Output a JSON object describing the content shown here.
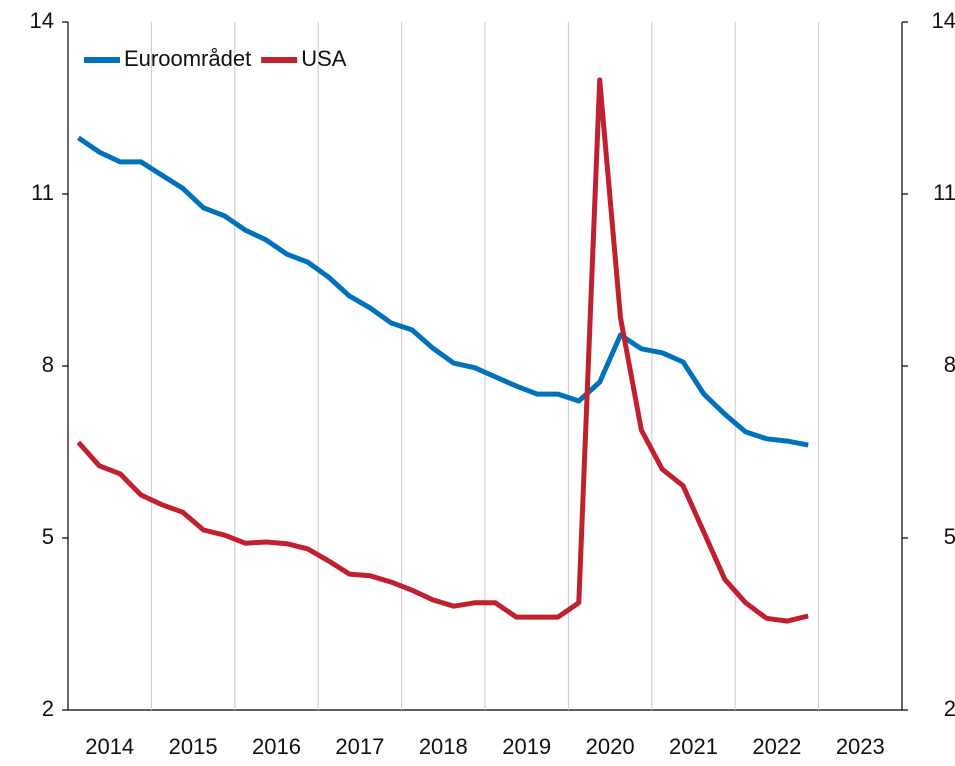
{
  "chart_data": {
    "type": "line",
    "xlabels": [
      "2014",
      "2015",
      "2016",
      "2017",
      "2018",
      "2019",
      "2020",
      "2021",
      "2022",
      "2023"
    ],
    "periods_per_label": 4,
    "series": [
      {
        "name": "Euroområdet",
        "color": "#0071bb",
        "values": [
          11.98,
          11.73,
          11.56,
          11.56,
          11.33,
          11.1,
          10.76,
          10.62,
          10.37,
          10.2,
          9.95,
          9.81,
          9.55,
          9.22,
          9.01,
          8.75,
          8.63,
          8.31,
          8.05,
          7.97,
          7.81,
          7.65,
          7.51,
          7.51,
          7.39,
          7.72,
          8.54,
          8.3,
          8.23,
          8.07,
          7.51,
          7.16,
          6.85,
          6.73,
          6.69,
          6.62
        ]
      },
      {
        "name": "USA",
        "color": "#c0202f",
        "values": [
          6.67,
          6.26,
          6.12,
          5.75,
          5.58,
          5.45,
          5.14,
          5.05,
          4.91,
          4.93,
          4.9,
          4.81,
          4.6,
          4.37,
          4.34,
          4.23,
          4.09,
          3.92,
          3.81,
          3.87,
          3.87,
          3.62,
          3.62,
          3.62,
          3.87,
          12.99,
          8.84,
          6.88,
          6.2,
          5.91,
          5.1,
          4.28,
          3.87,
          3.6,
          3.55,
          3.64
        ]
      }
    ],
    "ylim": [
      2,
      14
    ],
    "yticks": [
      2,
      5,
      8,
      11,
      14
    ],
    "y2lim": [
      2,
      14
    ],
    "y2ticks": [
      2,
      5,
      8,
      11,
      14
    ],
    "legend": "top-left",
    "grid": "vertical"
  }
}
